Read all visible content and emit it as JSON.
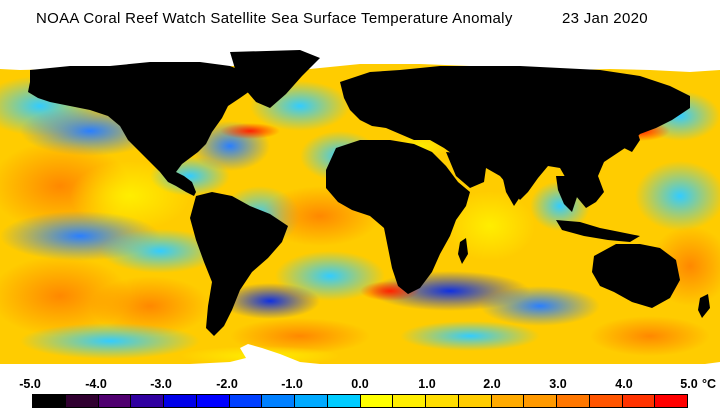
{
  "title": {
    "main": "NOAA Coral Reef Watch Satellite Sea Surface Temperature Anomaly",
    "date": "23 Jan 2020"
  },
  "map": {
    "land_color": "#000000",
    "ice_color": "#ffffff",
    "ocean_base_color": "#ffcc00"
  },
  "colorbar": {
    "ticks": [
      "-5.0",
      "-4.0",
      "-3.0",
      "-2.0",
      "-1.0",
      "0.0",
      "1.0",
      "2.0",
      "3.0",
      "4.0",
      "5.0"
    ],
    "unit": "°C",
    "colors": [
      "#000000",
      "#300030",
      "#500070",
      "#3000a0",
      "#0000e8",
      "#0000ff",
      "#0040ff",
      "#0080ff",
      "#00aaff",
      "#00ccff",
      "#ffff00",
      "#ffee00",
      "#ffdd00",
      "#ffcc00",
      "#ffaa00",
      "#ff9900",
      "#ff7700",
      "#ff5500",
      "#ff3300",
      "#ff0000"
    ]
  }
}
